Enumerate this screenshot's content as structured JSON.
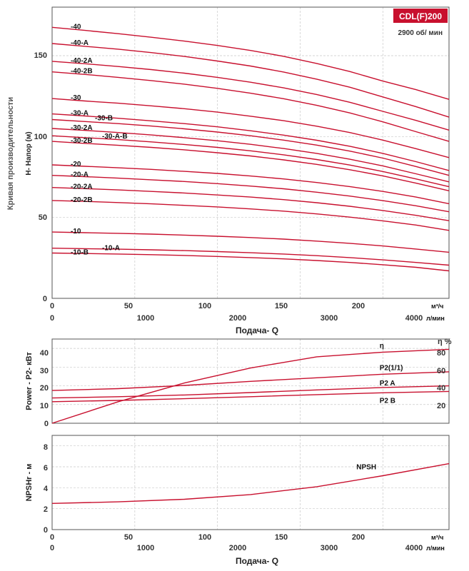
{
  "title": {
    "model": "CDL(F)200",
    "speed": "2900 об/ мин",
    "badge_color": "#c8102e",
    "curve_color": "#c8102e"
  },
  "charts": {
    "head": {
      "ylabel": "H- Напор (м)",
      "side_label": "Кривая производительности",
      "yticks": [
        "0",
        "50",
        "100",
        "150"
      ],
      "xticks_m3h": [
        "0",
        "50",
        "100",
        "150",
        "200"
      ],
      "xunit_m3h": "м³/ч",
      "xticks_lmin": [
        "0",
        "1000",
        "2000",
        "3000",
        "4000"
      ],
      "xunit_lmin": "л/мин",
      "xlabel": "Подача- Q"
    },
    "power": {
      "ylabel": "Power - P2- кВт",
      "yticks": [
        "0",
        "10",
        "20",
        "30",
        "40"
      ],
      "eta_label": "η %",
      "eta_ticks": [
        "20",
        "40",
        "60",
        "80"
      ]
    },
    "npsh": {
      "ylabel": "NPSHr - м",
      "yticks": [
        "0",
        "2",
        "4",
        "6",
        "8"
      ],
      "xticks_m3h": [
        "0",
        "50",
        "100",
        "150",
        "200"
      ],
      "xunit_m3h": "м³/ч",
      "xticks_lmin": [
        "0",
        "1000",
        "2000",
        "3000",
        "4000"
      ],
      "xunit_lmin": "л/мин",
      "xlabel": "Подача- Q"
    }
  },
  "chart_data": [
    {
      "type": "line",
      "xlabel": "Подача- Q",
      "ylabel": "H- Напор (м)",
      "xlim": [
        0,
        240
      ],
      "ylim": [
        0,
        180
      ],
      "x": [
        0,
        20,
        40,
        60,
        80,
        100,
        120,
        140,
        160,
        180,
        200,
        220,
        240
      ],
      "series": [
        {
          "name": "-40",
          "values": [
            167.5,
            165.6,
            163.6,
            161.4,
            159,
            156.3,
            153.2,
            149.6,
            145.2,
            140.2,
            134.3,
            129,
            123
          ]
        },
        {
          "name": "-40-A",
          "values": [
            157.5,
            155.8,
            154,
            151.9,
            149.5,
            146.7,
            143.6,
            139.9,
            135.5,
            130.5,
            124.5,
            118.5,
            112
          ]
        },
        {
          "name": "-40-2A",
          "values": [
            146.5,
            145,
            143.3,
            141.4,
            139.2,
            136.6,
            133.6,
            130.1,
            126,
            121.2,
            115.6,
            110,
            104
          ]
        },
        {
          "name": "-40-2B",
          "values": [
            140,
            138.4,
            136.6,
            134.6,
            132.4,
            129.8,
            126.8,
            123.4,
            119.3,
            114.6,
            109.1,
            103,
            97
          ]
        },
        {
          "name": "-30",
          "values": [
            123.5,
            122,
            120.6,
            119,
            117.2,
            115.1,
            112.6,
            109.8,
            106.4,
            102.5,
            97.8,
            92.5,
            87
          ]
        },
        {
          "name": "-30-A",
          "values": [
            114,
            112.7,
            111.3,
            109.7,
            108,
            106,
            103.6,
            100.9,
            97.7,
            94,
            89.6,
            84.5,
            79
          ]
        },
        {
          "name": "-30-B",
          "values": [
            110.5,
            109.3,
            108,
            106.5,
            104.8,
            102.8,
            100.5,
            97.8,
            94.7,
            91,
            86.7,
            81.5,
            76
          ]
        },
        {
          "name": "-30-2A",
          "values": [
            105,
            103.8,
            102.5,
            101,
            99.3,
            97.4,
            95.2,
            92.6,
            89.6,
            86,
            81.9,
            77,
            72
          ]
        },
        {
          "name": "-30-A-B",
          "values": [
            100.5,
            99.3,
            98.1,
            96.7,
            95.1,
            93.3,
            91.2,
            88.7,
            85.8,
            82.4,
            78.4,
            73.8,
            69
          ]
        },
        {
          "name": "-30-2B",
          "values": [
            97,
            95.8,
            94.6,
            93.3,
            91.8,
            90,
            88,
            85.6,
            82.8,
            79.5,
            75.7,
            71.2,
            66.5
          ]
        },
        {
          "name": "-20",
          "values": [
            82.5,
            81.6,
            80.7,
            79.7,
            78.5,
            77.2,
            75.6,
            73.8,
            71.6,
            69.1,
            66.1,
            62.6,
            58.5
          ]
        },
        {
          "name": "-20-A",
          "values": [
            76,
            75.2,
            74.3,
            73.3,
            72.2,
            70.9,
            69.4,
            67.7,
            65.6,
            63.2,
            60.4,
            57.2,
            53.5
          ]
        },
        {
          "name": "-20-2A",
          "values": [
            68.5,
            67.8,
            67,
            66.1,
            65.1,
            63.9,
            62.6,
            61,
            59.1,
            56.9,
            54.3,
            51.3,
            48
          ]
        },
        {
          "name": "-20-2B",
          "values": [
            60.5,
            59.9,
            59.2,
            58.4,
            57.5,
            56.5,
            55.3,
            53.9,
            52.2,
            50.2,
            47.9,
            45.3,
            42
          ]
        },
        {
          "name": "-10",
          "values": [
            41,
            40.6,
            40.2,
            39.7,
            39.1,
            38.4,
            37.6,
            36.6,
            35.4,
            34,
            32.4,
            30.5,
            28.5
          ]
        },
        {
          "name": "-10-A",
          "values": [
            31,
            30.7,
            30.4,
            30,
            29.5,
            28.9,
            28.2,
            27.4,
            26.4,
            25.2,
            23.8,
            22.2,
            20.5
          ]
        },
        {
          "name": "-10-B",
          "values": [
            28,
            27.7,
            27.4,
            27,
            26.5,
            25.9,
            25.2,
            24.4,
            23.4,
            22.2,
            20.8,
            19.2,
            17
          ]
        }
      ]
    },
    {
      "type": "line",
      "ylabel": "Power - P2- кВт",
      "xlim": [
        0,
        240
      ],
      "ylim": [
        0,
        45
      ],
      "y2label": "η %",
      "y2lim": [
        0,
        90
      ],
      "x": [
        0,
        40,
        80,
        120,
        160,
        200,
        240
      ],
      "series": [
        {
          "name": "η",
          "axis": "y2",
          "values": [
            0,
            23,
            43,
            59,
            71,
            76,
            79
          ]
        },
        {
          "name": "P2(1/1)",
          "axis": "y",
          "values": [
            17.5,
            18.5,
            20.2,
            22.4,
            24.3,
            26.2,
            27.5
          ]
        },
        {
          "name": "P2 A",
          "axis": "y",
          "values": [
            13.5,
            14.2,
            15.1,
            16.4,
            17.8,
            19.1,
            20
          ]
        },
        {
          "name": "P2 B",
          "axis": "y",
          "values": [
            11.5,
            12.2,
            13.1,
            14.2,
            15.3,
            16.3,
            17
          ]
        }
      ]
    },
    {
      "type": "line",
      "xlabel": "Подача- Q",
      "ylabel": "NPSHr - м",
      "xlim": [
        0,
        240
      ],
      "ylim": [
        0,
        9
      ],
      "x": [
        0,
        40,
        80,
        120,
        160,
        200,
        240
      ],
      "series": [
        {
          "name": "NPSH",
          "values": [
            2.5,
            2.65,
            2.9,
            3.35,
            4.1,
            5.15,
            6.3
          ]
        }
      ]
    }
  ]
}
